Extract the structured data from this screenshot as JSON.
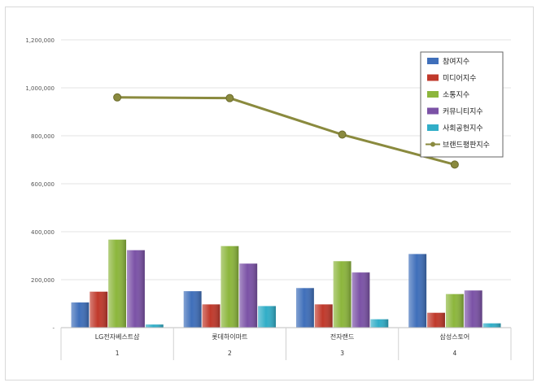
{
  "chart_data": {
    "type": "bar",
    "categories": [
      "LG전자베스트샵",
      "롯데하이마트",
      "전자랜드",
      "삼성스토어"
    ],
    "category_numbers": [
      "1",
      "2",
      "3",
      "4"
    ],
    "ylim": [
      0,
      1200000
    ],
    "yticks": [
      0,
      200000,
      400000,
      600000,
      800000,
      1000000,
      1200000
    ],
    "ytick_labels": [
      "-",
      "200,000",
      "400,000",
      "600,000",
      "800,000",
      "1,000,000",
      "1,200,000"
    ],
    "grid": true,
    "legend_position": "top-right",
    "series": [
      {
        "name": "참여지수",
        "kind": "bar",
        "color": "#3f6fba",
        "values": [
          105000,
          152000,
          165000,
          307000
        ]
      },
      {
        "name": "미디어지수",
        "kind": "bar",
        "color": "#c0392b",
        "values": [
          150000,
          97000,
          97000,
          62000
        ]
      },
      {
        "name": "소통지수",
        "kind": "bar",
        "color": "#8cb63c",
        "values": [
          367000,
          340000,
          277000,
          140000
        ]
      },
      {
        "name": "커뮤니티지수",
        "kind": "bar",
        "color": "#7b52a6",
        "values": [
          323000,
          267000,
          230000,
          155000
        ]
      },
      {
        "name": "사회공헌지수",
        "kind": "bar",
        "color": "#31aec8",
        "values": [
          13000,
          90000,
          35000,
          18000
        ]
      },
      {
        "name": "브랜드평판지수",
        "kind": "line",
        "color": "#8a8a3e",
        "values": [
          960000,
          957000,
          805000,
          680000
        ]
      }
    ]
  }
}
